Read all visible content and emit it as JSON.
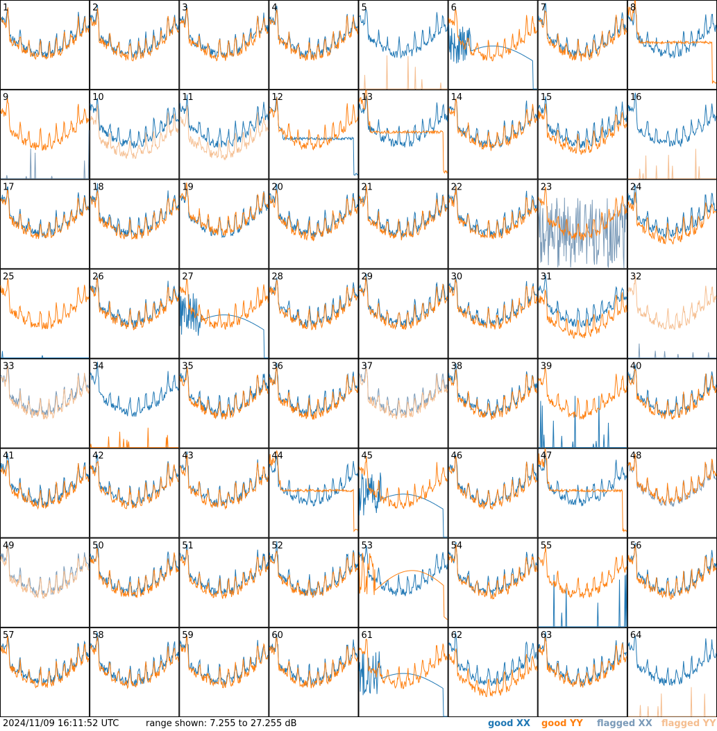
{
  "footer": {
    "timestamp": "2024/11/09 16:11:52 UTC",
    "range_text": "range shown: 7.255 to 27.255 dB"
  },
  "legend": {
    "good_xx": {
      "label": "good XX",
      "color": "#1f77b4"
    },
    "good_yy": {
      "label": "good YY",
      "color": "#ff7f0e"
    },
    "flagged_xx": {
      "label": "flagged XX",
      "color": "#7a9ab8"
    },
    "flagged_yy": {
      "label": "flagged YY",
      "color": "#f5be90"
    }
  },
  "chart_data": {
    "type": "line",
    "title": "",
    "xlabel": "",
    "ylabel": "",
    "ylim": [
      7.255,
      27.255
    ],
    "grid_rows": 8,
    "grid_cols": 8,
    "panels": [
      {
        "id": "1",
        "xx": "good",
        "yy": "good",
        "shape": "normal",
        "yy_offset": 0
      },
      {
        "id": "2",
        "xx": "good",
        "yy": "good",
        "shape": "normal",
        "yy_offset": 0
      },
      {
        "id": "3",
        "xx": "good",
        "yy": "good",
        "shape": "normal",
        "yy_offset": 0
      },
      {
        "id": "4",
        "xx": "good",
        "yy": "good",
        "shape": "normal",
        "yy_offset": 0
      },
      {
        "id": "5",
        "xx": "good",
        "yy": "flagged",
        "shape": "yy_spikes",
        "yy_offset": 0
      },
      {
        "id": "6",
        "xx": "good",
        "yy": "good",
        "shape": "xx_dip",
        "yy_offset": 0
      },
      {
        "id": "7",
        "xx": "good",
        "yy": "good",
        "shape": "normal",
        "yy_offset": 0
      },
      {
        "id": "8",
        "xx": "good",
        "yy": "good",
        "shape": "yy_flat",
        "yy_offset": 0
      },
      {
        "id": "9",
        "xx": "flagged",
        "yy": "good",
        "shape": "xx_spikes",
        "yy_offset": 0
      },
      {
        "id": "10",
        "xx": "good",
        "yy": "flagged",
        "shape": "normal",
        "yy_offset": -2
      },
      {
        "id": "11",
        "xx": "good",
        "yy": "flagged",
        "shape": "normal",
        "yy_offset": -2
      },
      {
        "id": "12",
        "xx": "good",
        "yy": "good",
        "shape": "xx_flat",
        "yy_offset": 0
      },
      {
        "id": "13",
        "xx": "good",
        "yy": "good",
        "shape": "yy_flat",
        "yy_offset": 0
      },
      {
        "id": "14",
        "xx": "good",
        "yy": "good",
        "shape": "normal",
        "yy_offset": 0
      },
      {
        "id": "15",
        "xx": "good",
        "yy": "good",
        "shape": "normal",
        "yy_offset": -1
      },
      {
        "id": "16",
        "xx": "good",
        "yy": "flagged",
        "shape": "yy_spikes",
        "yy_offset": 0
      },
      {
        "id": "17",
        "xx": "good",
        "yy": "good",
        "shape": "normal",
        "yy_offset": 0
      },
      {
        "id": "18",
        "xx": "good",
        "yy": "good",
        "shape": "normal",
        "yy_offset": 0
      },
      {
        "id": "19",
        "xx": "good",
        "yy": "good",
        "shape": "normal",
        "yy_offset": 1
      },
      {
        "id": "20",
        "xx": "good",
        "yy": "good",
        "shape": "normal",
        "yy_offset": 0
      },
      {
        "id": "21",
        "xx": "good",
        "yy": "good",
        "shape": "normal",
        "yy_offset": 0
      },
      {
        "id": "22",
        "xx": "good",
        "yy": "good",
        "shape": "normal",
        "yy_offset": 0
      },
      {
        "id": "23",
        "xx": "flagged",
        "yy": "good",
        "shape": "xx_noise",
        "yy_offset": 0
      },
      {
        "id": "24",
        "xx": "good",
        "yy": "good",
        "shape": "normal",
        "yy_offset": -1
      },
      {
        "id": "25",
        "xx": "good",
        "yy": "good",
        "shape": "xx_low",
        "yy_offset": 0
      },
      {
        "id": "26",
        "xx": "good",
        "yy": "good",
        "shape": "normal",
        "yy_offset": 0
      },
      {
        "id": "27",
        "xx": "good",
        "yy": "good",
        "shape": "xx_dip",
        "yy_offset": 0
      },
      {
        "id": "28",
        "xx": "good",
        "yy": "good",
        "shape": "normal",
        "yy_offset": 0
      },
      {
        "id": "29",
        "xx": "good",
        "yy": "good",
        "shape": "normal",
        "yy_offset": 0
      },
      {
        "id": "30",
        "xx": "good",
        "yy": "good",
        "shape": "normal",
        "yy_offset": 0
      },
      {
        "id": "31",
        "xx": "good",
        "yy": "good",
        "shape": "normal",
        "yy_offset": -2
      },
      {
        "id": "32",
        "xx": "flagged",
        "yy": "flagged",
        "shape": "xx_low",
        "yy_offset": 0
      },
      {
        "id": "33",
        "xx": "flagged",
        "yy": "flagged",
        "shape": "normal",
        "yy_offset": 0
      },
      {
        "id": "34",
        "xx": "good",
        "yy": "good",
        "shape": "yy_spikes",
        "yy_offset": 0
      },
      {
        "id": "35",
        "xx": "good",
        "yy": "good",
        "shape": "normal",
        "yy_offset": 0
      },
      {
        "id": "36",
        "xx": "good",
        "yy": "good",
        "shape": "normal",
        "yy_offset": 0
      },
      {
        "id": "37",
        "xx": "flagged",
        "yy": "flagged",
        "shape": "normal",
        "yy_offset": 0
      },
      {
        "id": "38",
        "xx": "good",
        "yy": "good",
        "shape": "normal",
        "yy_offset": 0
      },
      {
        "id": "39",
        "xx": "good",
        "yy": "good",
        "shape": "xx_spikes",
        "yy_offset": 0
      },
      {
        "id": "40",
        "xx": "good",
        "yy": "good",
        "shape": "normal",
        "yy_offset": 0
      },
      {
        "id": "41",
        "xx": "good",
        "yy": "good",
        "shape": "normal",
        "yy_offset": 0
      },
      {
        "id": "42",
        "xx": "good",
        "yy": "good",
        "shape": "normal",
        "yy_offset": 0
      },
      {
        "id": "43",
        "xx": "good",
        "yy": "good",
        "shape": "normal",
        "yy_offset": 0
      },
      {
        "id": "44",
        "xx": "good",
        "yy": "good",
        "shape": "yy_flat",
        "yy_offset": 0
      },
      {
        "id": "45",
        "xx": "good",
        "yy": "good",
        "shape": "xx_dip",
        "yy_offset": 0
      },
      {
        "id": "46",
        "xx": "good",
        "yy": "good",
        "shape": "normal",
        "yy_offset": 0
      },
      {
        "id": "47",
        "xx": "good",
        "yy": "good",
        "shape": "yy_flat",
        "yy_offset": 0
      },
      {
        "id": "48",
        "xx": "flagged",
        "yy": "good",
        "shape": "normal",
        "yy_offset": 1
      },
      {
        "id": "49",
        "xx": "flagged",
        "yy": "flagged",
        "shape": "normal",
        "yy_offset": 0
      },
      {
        "id": "50",
        "xx": "good",
        "yy": "good",
        "shape": "normal",
        "yy_offset": 0
      },
      {
        "id": "51",
        "xx": "good",
        "yy": "good",
        "shape": "normal",
        "yy_offset": 0
      },
      {
        "id": "52",
        "xx": "good",
        "yy": "good",
        "shape": "normal",
        "yy_offset": 0
      },
      {
        "id": "53",
        "xx": "good",
        "yy": "good",
        "shape": "yy_dip",
        "yy_offset": 0
      },
      {
        "id": "54",
        "xx": "good",
        "yy": "good",
        "shape": "normal",
        "yy_offset": 0
      },
      {
        "id": "55",
        "xx": "good",
        "yy": "good",
        "shape": "xx_spikes",
        "yy_offset": 0
      },
      {
        "id": "56",
        "xx": "good",
        "yy": "good",
        "shape": "normal",
        "yy_offset": 0
      },
      {
        "id": "57",
        "xx": "good",
        "yy": "good",
        "shape": "normal",
        "yy_offset": 0
      },
      {
        "id": "58",
        "xx": "good",
        "yy": "good",
        "shape": "normal",
        "yy_offset": 0
      },
      {
        "id": "59",
        "xx": "good",
        "yy": "good",
        "shape": "normal",
        "yy_offset": 0
      },
      {
        "id": "60",
        "xx": "good",
        "yy": "good",
        "shape": "normal",
        "yy_offset": 0
      },
      {
        "id": "61",
        "xx": "good",
        "yy": "good",
        "shape": "xx_dip",
        "yy_offset": 0
      },
      {
        "id": "62",
        "xx": "good",
        "yy": "good",
        "shape": "normal",
        "yy_offset": -2
      },
      {
        "id": "63",
        "xx": "good",
        "yy": "good",
        "shape": "normal",
        "yy_offset": 0
      },
      {
        "id": "64",
        "xx": "good",
        "yy": "flagged",
        "shape": "yy_spikes",
        "yy_offset": 0
      }
    ]
  }
}
